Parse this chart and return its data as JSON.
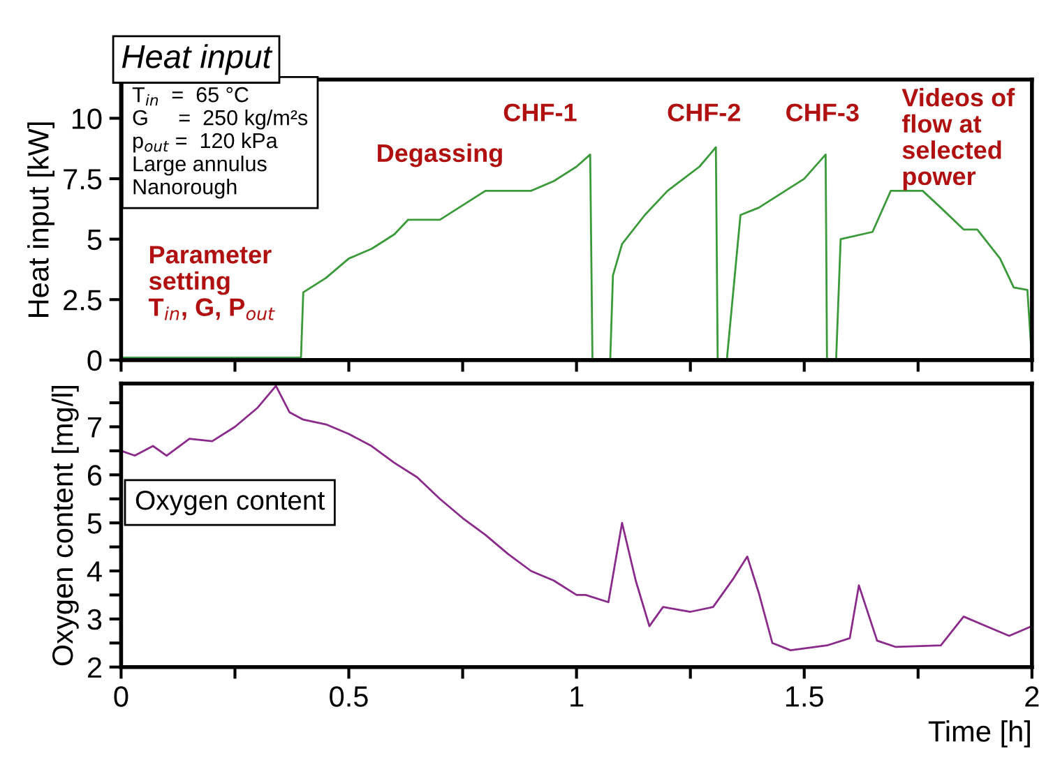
{
  "chart_data": [
    {
      "type": "line",
      "title": "Heat input",
      "ylabel": "Heat input [kW]",
      "xlim": [
        0,
        2
      ],
      "ylim": [
        0,
        11.6
      ],
      "xticks": [
        0,
        {
          "value": 0.25,
          "label": null
        },
        0.5,
        {
          "value": 0.75,
          "label": null
        },
        1,
        {
          "value": 1.25,
          "label": null
        },
        1.5,
        {
          "value": 1.75,
          "label": null
        },
        2
      ],
      "yticks": [
        0,
        2.5,
        5,
        7.5,
        10
      ],
      "tick_labels": "y",
      "grid": false,
      "marker": "none",
      "line_style": "solid",
      "annotations": [
        "T$_{in}$  =  65 °C\nG     =  250 kg/m²s\np$_{out}$ =  120 kPa\nLarge annulus\nNanorough",
        "Degassing",
        "CHF-1",
        "CHF-2",
        "CHF-3",
        "Videos of\nflow at\nselected\npower",
        "Parameter\nsetting\nT$_{in}$, G, P$_{out}$"
      ],
      "series": [
        {
          "color": "#3a9a3a",
          "x": [
            0,
            0.1,
            0.2,
            0.3,
            0.395,
            0.4,
            0.45,
            0.5,
            0.55,
            0.6,
            0.63,
            0.7,
            0.75,
            0.8,
            0.9,
            0.95,
            1.0,
            1.03,
            1.035,
            1.074,
            1.08,
            1.1,
            1.15,
            1.2,
            1.27,
            1.306,
            1.31,
            1.33,
            1.36,
            1.4,
            1.45,
            1.5,
            1.547,
            1.55,
            1.57,
            1.58,
            1.65,
            1.69,
            1.76,
            1.8,
            1.85,
            1.88,
            1.93,
            1.96,
            1.99,
            2.0
          ],
          "values": [
            0.1,
            0.1,
            0.1,
            0.1,
            0.1,
            2.8,
            3.4,
            4.2,
            4.6,
            5.2,
            5.8,
            5.8,
            6.4,
            7.0,
            7.0,
            7.4,
            8.0,
            8.5,
            0,
            0,
            3.5,
            4.8,
            6.0,
            7.0,
            8.0,
            8.8,
            0,
            0,
            6.0,
            6.3,
            6.9,
            7.5,
            8.5,
            0,
            0,
            5.0,
            5.3,
            7.0,
            7.0,
            6.3,
            5.4,
            5.4,
            4.2,
            3.0,
            2.9,
            0
          ]
        }
      ]
    },
    {
      "type": "line",
      "xlabel": "Time [h]",
      "ylabel": "Oxygen content [mg/l]",
      "xlim": [
        0,
        2
      ],
      "ylim": [
        2,
        7.9
      ],
      "xticks": [
        0,
        {
          "value": 0.25,
          "label": null
        },
        0.5,
        {
          "value": 0.75,
          "label": null
        },
        1,
        {
          "value": 1.25,
          "label": null
        },
        1.5,
        {
          "value": 1.75,
          "label": null
        },
        2
      ],
      "yticks": [
        2,
        {
          "value": 2.5,
          "label": null
        },
        3,
        {
          "value": 3.5,
          "label": null
        },
        4,
        {
          "value": 4.5,
          "label": null
        },
        5,
        {
          "value": 5.5,
          "label": null
        },
        6,
        {
          "value": 6.5,
          "label": null
        },
        7,
        {
          "value": 7.5,
          "label": null
        }
      ],
      "grid": false,
      "marker": "none",
      "line_style": "solid",
      "annotations": [
        "Oxygen content"
      ],
      "series": [
        {
          "color": "#8a2a8a",
          "x": [
            0,
            0.03,
            0.07,
            0.1,
            0.15,
            0.2,
            0.25,
            0.3,
            0.34,
            0.37,
            0.4,
            0.45,
            0.5,
            0.55,
            0.6,
            0.65,
            0.7,
            0.75,
            0.8,
            0.85,
            0.9,
            0.95,
            1.0,
            1.02,
            1.07,
            1.1,
            1.13,
            1.16,
            1.19,
            1.25,
            1.3,
            1.345,
            1.375,
            1.4,
            1.43,
            1.47,
            1.55,
            1.6,
            1.62,
            1.66,
            1.7,
            1.8,
            1.85,
            1.9,
            1.95,
            2.0
          ],
          "values": [
            6.5,
            6.4,
            6.6,
            6.4,
            6.75,
            6.7,
            7.0,
            7.4,
            7.85,
            7.3,
            7.15,
            7.05,
            6.85,
            6.6,
            6.25,
            5.95,
            5.5,
            5.1,
            4.75,
            4.35,
            4.0,
            3.8,
            3.5,
            3.5,
            3.35,
            5.0,
            3.8,
            2.85,
            3.25,
            3.15,
            3.25,
            3.85,
            4.3,
            3.55,
            2.5,
            2.35,
            2.45,
            2.6,
            3.7,
            2.55,
            2.42,
            2.45,
            3.05,
            2.85,
            2.65,
            2.85
          ]
        }
      ]
    }
  ]
}
